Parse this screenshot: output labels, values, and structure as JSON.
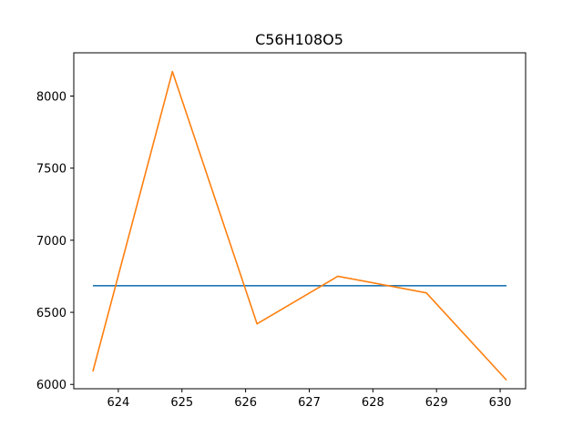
{
  "chart_data": {
    "type": "line",
    "title": "C56H108O5",
    "xlabel": "",
    "ylabel": "",
    "xlim": [
      623.3,
      630.4
    ],
    "ylim": [
      5970,
      8300
    ],
    "xticks": [
      624,
      625,
      626,
      627,
      628,
      629,
      630
    ],
    "yticks": [
      6000,
      6500,
      7000,
      7500,
      8000
    ],
    "grid": false,
    "series": [
      {
        "color": "#1f77b4",
        "x": [
          623.6,
          630.1
        ],
        "y": [
          6685,
          6685
        ]
      },
      {
        "color": "#ff7f0e",
        "x": [
          623.6,
          624.85,
          626.18,
          627.45,
          628.84,
          630.1
        ],
        "y": [
          6090,
          8170,
          6420,
          6750,
          6635,
          6030
        ]
      }
    ]
  }
}
